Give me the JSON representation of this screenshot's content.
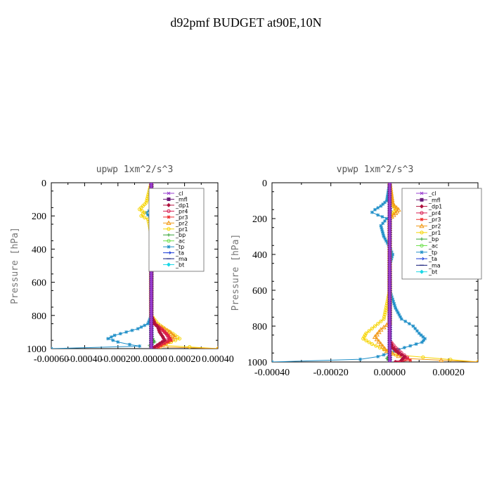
{
  "page_title": "d92pmf  BUDGET at90E,10N",
  "chart_data": [
    {
      "type": "line",
      "title": "upwp   1xm^2/s^3",
      "ylabel": "Pressure [hPa]",
      "xlabel": "",
      "xlim": [
        -0.0006,
        0.0004
      ],
      "ylim": [
        1000,
        0
      ],
      "xticks": [
        -0.0006,
        -0.0004,
        -0.0002,
        0.0,
        0.0002,
        0.0004
      ],
      "xtick_labels": [
        "-0.00060",
        "-0.00040",
        "-0.00020",
        "0.00000",
        "0.00020",
        "0.00040"
      ],
      "yticks": [
        0,
        200,
        400,
        600,
        800,
        1000
      ],
      "ytick_labels": [
        "0",
        "200",
        "400",
        "600",
        "800",
        "1000"
      ],
      "legend_position": "top-right",
      "series": [
        {
          "name": "_cl",
          "color": "#9a3fd0",
          "marker": "cross",
          "p": [
            0,
            1000
          ],
          "v": [
            0.0,
            0.0
          ]
        },
        {
          "name": "_mfl",
          "color": "#6a1a78",
          "marker": "square",
          "p": [
            0,
            1000
          ],
          "v": [
            0.0,
            0.0
          ]
        },
        {
          "name": "_dp1",
          "color": "#b0123e",
          "marker": "diamond",
          "p": [
            0,
            800,
            850,
            870,
            900,
            930,
            950,
            970,
            990,
            1000
          ],
          "v": [
            0.0,
            0.0,
            2e-05,
            4e-05,
            5e-05,
            7e-05,
            8e-05,
            5e-05,
            2e-05,
            0.0
          ]
        },
        {
          "name": "_pr4",
          "color": "#d81c50",
          "marker": "circle",
          "p": [
            0,
            800,
            850,
            880,
            910,
            940,
            960,
            980,
            1000
          ],
          "v": [
            0.0,
            0.0,
            2e-05,
            6e-05,
            9e-05,
            0.00011,
            8e-05,
            4e-05,
            2e-05
          ]
        },
        {
          "name": "_pr3",
          "color": "#ee2a2a",
          "marker": "star",
          "p": [
            0,
            820,
            860,
            890,
            920,
            950,
            980,
            1000
          ],
          "v": [
            0.0,
            0.0,
            3e-05,
            7e-05,
            0.0001,
            0.00012,
            6e-05,
            3e-05
          ]
        },
        {
          "name": "_pr2",
          "color": "#f29a18",
          "marker": "tri",
          "p": [
            0,
            800,
            850,
            880,
            900,
            930,
            960,
            990,
            1000
          ],
          "v": [
            0.0,
            0.0,
            3e-05,
            8e-05,
            0.00011,
            0.00014,
            0.0001,
            5e-05,
            0.0004
          ]
        },
        {
          "name": "_pr1",
          "color": "#f6d400",
          "marker": "circle",
          "p": [
            0,
            120,
            140,
            160,
            180,
            200,
            220,
            260,
            320,
            400,
            500,
            600,
            700,
            800,
            850,
            880,
            910,
            940,
            960,
            980,
            1000
          ],
          "v": [
            0.0,
            -3e-05,
            -5e-05,
            -7e-05,
            -4e-05,
            -6e-05,
            -2e-05,
            -1e-05,
            0.0,
            0.0,
            0.0,
            0.0,
            0.0,
            0.0,
            4e-05,
            8e-05,
            0.00013,
            0.00017,
            0.00012,
            6e-05,
            0.0004
          ]
        },
        {
          "name": "_bp",
          "color": "#39a43a",
          "marker": "plus",
          "p": [
            0,
            900,
            940,
            960,
            980,
            1000
          ],
          "v": [
            0.0,
            0.0,
            1e-05,
            2e-05,
            -1e-05,
            0.0
          ]
        },
        {
          "name": "_ac",
          "color": "#6be04a",
          "marker": "circle",
          "p": [
            0,
            1000
          ],
          "v": [
            0.0,
            0.0
          ]
        },
        {
          "name": "_tp",
          "color": "#1f8fc8",
          "marker": "star",
          "p": [
            0,
            100,
            130,
            150,
            180,
            220,
            300,
            380,
            460,
            520,
            600,
            700,
            800,
            850,
            880,
            900,
            920,
            940,
            960,
            975,
            985,
            1000
          ],
          "v": [
            0.0,
            0.0,
            4e-05,
            2e-05,
            -3e-05,
            0.0,
            1e-05,
            0.0,
            1e-05,
            0.0,
            0.0,
            0.0,
            0.0,
            -2e-05,
            -8e-05,
            -0.00015,
            -0.00022,
            -0.00026,
            -0.0002,
            -0.00013,
            -7e-05,
            -0.0006
          ]
        },
        {
          "name": "_ta",
          "color": "#1a3cd8",
          "marker": "arrow",
          "p": [
            0,
            1000
          ],
          "v": [
            0.0,
            0.0
          ]
        },
        {
          "name": "_ma",
          "color": "#111a78",
          "marker": "dash",
          "p": [
            0,
            1000
          ],
          "v": [
            0.0,
            0.0
          ]
        },
        {
          "name": "_bt",
          "color": "#19d7e6",
          "marker": "diamond",
          "p": [
            0,
            1000
          ],
          "v": [
            0.0,
            0.0
          ]
        }
      ]
    },
    {
      "type": "line",
      "title": "vpwp   1xm^2/s^3",
      "ylabel": "Pressure [hPa]",
      "xlabel": "",
      "xlim": [
        -0.0004,
        0.0003
      ],
      "ylim": [
        1000,
        0
      ],
      "xticks": [
        -0.0004,
        -0.0002,
        0.0,
        0.0002
      ],
      "xtick_labels": [
        "-0.00040",
        "-0.00020",
        "0.00000",
        "0.00020"
      ],
      "yticks": [
        0,
        200,
        400,
        600,
        800,
        1000
      ],
      "ytick_labels": [
        "0",
        "200",
        "400",
        "600",
        "800",
        "1000"
      ],
      "legend_position": "top-right",
      "series": [
        {
          "name": "_cl",
          "color": "#9a3fd0",
          "marker": "cross",
          "p": [
            0,
            1000
          ],
          "v": [
            0.0,
            0.0
          ]
        },
        {
          "name": "_mfl",
          "color": "#6a1a78",
          "marker": "square",
          "p": [
            0,
            1000
          ],
          "v": [
            0.0,
            0.0
          ]
        },
        {
          "name": "_dp1",
          "color": "#b0123e",
          "marker": "diamond",
          "p": [
            0,
            880,
            920,
            950,
            970,
            990,
            1000
          ],
          "v": [
            0.0,
            0.0,
            1e-05,
            3e-05,
            5e-05,
            4e-05,
            2e-05
          ]
        },
        {
          "name": "_pr4",
          "color": "#d81c50",
          "marker": "circle",
          "p": [
            0,
            880,
            920,
            950,
            975,
            995,
            1000
          ],
          "v": [
            0.0,
            0.0,
            2e-05,
            4e-05,
            6e-05,
            4e-05,
            2e-05
          ]
        },
        {
          "name": "_pr3",
          "color": "#ee2a2a",
          "marker": "star",
          "p": [
            0,
            900,
            940,
            970,
            990,
            1000
          ],
          "v": [
            0.0,
            0.0,
            2e-05,
            5e-05,
            7e-05,
            3e-05
          ]
        },
        {
          "name": "_pr2",
          "color": "#f29a18",
          "marker": "tri",
          "p": [
            0,
            120,
            150,
            170,
            200,
            260,
            320,
            400,
            600,
            780,
            820,
            860,
            900,
            940,
            980,
            1000
          ],
          "v": [
            0.0,
            1e-05,
            3e-05,
            2e-05,
            0.0,
            0.0,
            0.0,
            0.0,
            0.0,
            0.0,
            -3e-05,
            -5e-05,
            -3e-05,
            -1e-05,
            5e-05,
            0.0003
          ]
        },
        {
          "name": "_pr1",
          "color": "#f6d400",
          "marker": "circle",
          "p": [
            0,
            120,
            150,
            170,
            200,
            260,
            350,
            400,
            600,
            760,
            800,
            840,
            870,
            900,
            930,
            960,
            1000
          ],
          "v": [
            0.0,
            1e-05,
            2e-05,
            1e-05,
            0.0,
            0.0,
            0.0,
            0.0,
            0.0,
            -2e-05,
            -5e-05,
            -8e-05,
            -9e-05,
            -6e-05,
            -2e-05,
            2e-05,
            0.0003
          ]
        },
        {
          "name": "_bp",
          "color": "#39a43a",
          "marker": "plus",
          "p": [
            0,
            960,
            980,
            1000
          ],
          "v": [
            0.0,
            0.0,
            -1e-05,
            0.0
          ]
        },
        {
          "name": "_ac",
          "color": "#6be04a",
          "marker": "circle",
          "p": [
            0,
            1000
          ],
          "v": [
            0.0,
            0.0
          ]
        },
        {
          "name": "_tp",
          "color": "#1f8fc8",
          "marker": "star",
          "p": [
            0,
            100,
            130,
            150,
            165,
            180,
            200,
            240,
            300,
            360,
            400,
            460,
            520,
            600,
            700,
            760,
            800,
            840,
            870,
            890,
            910,
            930,
            950,
            970,
            985,
            1000
          ],
          "v": [
            0.0,
            -1e-05,
            -3e-05,
            -5e-05,
            -6e-05,
            -4e-05,
            -1e-05,
            -3e-05,
            -2e-05,
            0.0,
            1e-05,
            0.0,
            0.0,
            0.0,
            2e-05,
            4e-05,
            8e-05,
            0.0001,
            0.00012,
            0.00011,
            7e-05,
            3e-05,
            0.0,
            -4e-05,
            -0.0001,
            -0.0004
          ]
        },
        {
          "name": "_ta",
          "color": "#1a3cd8",
          "marker": "arrow",
          "p": [
            0,
            1000
          ],
          "v": [
            0.0,
            0.0
          ]
        },
        {
          "name": "_ma",
          "color": "#111a78",
          "marker": "dash",
          "p": [
            0,
            1000
          ],
          "v": [
            0.0,
            0.0
          ]
        },
        {
          "name": "_bt",
          "color": "#19d7e6",
          "marker": "diamond",
          "p": [
            0,
            1000
          ],
          "v": [
            0.0,
            0.0
          ]
        }
      ]
    }
  ]
}
